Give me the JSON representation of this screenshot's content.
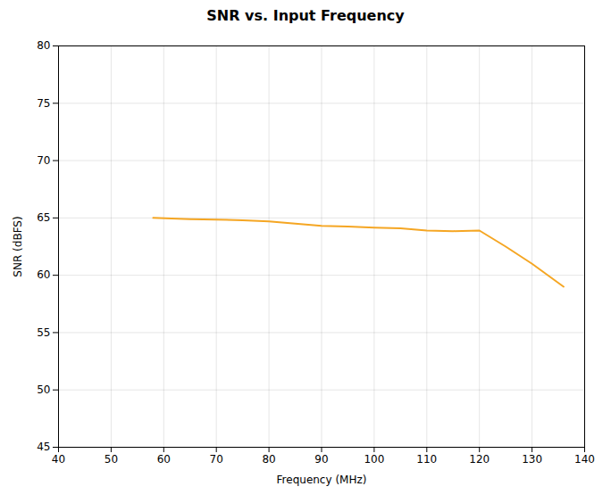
{
  "chart_data": {
    "type": "line",
    "title": "SNR vs. Input Frequency",
    "xlabel": "Frequency (MHz)",
    "ylabel": "SNR (dBFS)",
    "x": [
      58,
      65,
      70,
      75,
      80,
      85,
      90,
      95,
      100,
      105,
      110,
      115,
      120,
      125,
      130,
      136
    ],
    "values": [
      65.0,
      64.9,
      64.85,
      64.8,
      64.7,
      64.5,
      64.3,
      64.25,
      64.15,
      64.1,
      63.9,
      63.85,
      63.9,
      62.5,
      61.0,
      59.0
    ],
    "color": "#F5A623",
    "xlim": [
      40,
      140
    ],
    "ylim": [
      45,
      80
    ],
    "xticks": [
      40,
      50,
      60,
      70,
      80,
      90,
      100,
      110,
      120,
      130,
      140
    ],
    "yticks": [
      45,
      50,
      55,
      60,
      65,
      70,
      75,
      80
    ],
    "grid": true
  }
}
